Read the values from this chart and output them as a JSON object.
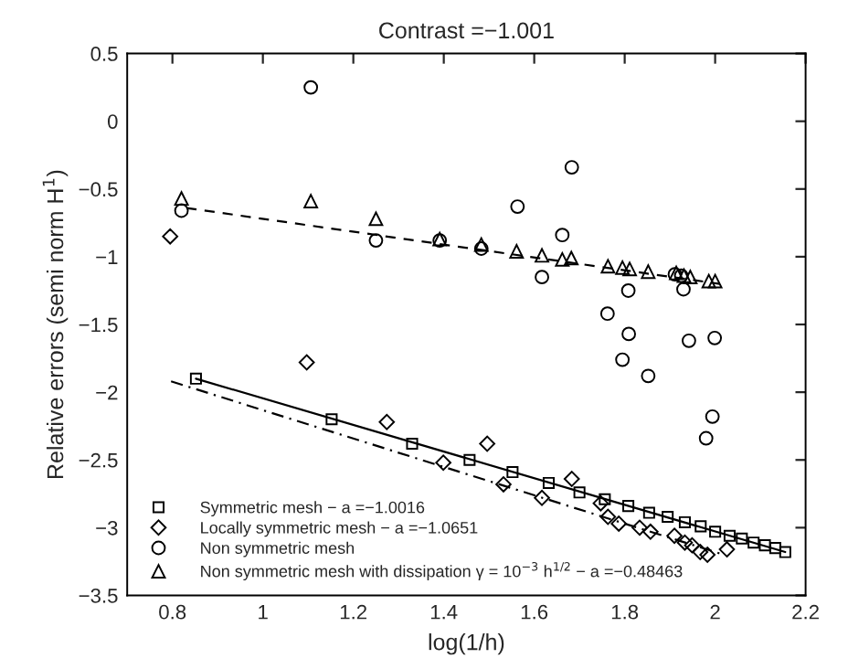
{
  "chart_data": {
    "type": "scatter",
    "title": "Contrast =−1.001",
    "xlabel": "log(1/h)",
    "ylabel": "Relative errors (semi norm H$^{1}$)",
    "xlim": [
      0.7,
      2.2
    ],
    "ylim": [
      -3.5,
      0.5
    ],
    "xticks": [
      0.8,
      1,
      1.2,
      1.4,
      1.6,
      1.8,
      2,
      2.2
    ],
    "yticks": [
      {
        "value": -3.5,
        "label": "−3.5"
      },
      {
        "value": -3,
        "label": "−3"
      },
      {
        "value": -2.5,
        "label": "−2.5"
      },
      {
        "value": -2,
        "label": "−2"
      },
      {
        "value": -1.5,
        "label": "−1.5"
      },
      {
        "value": -1,
        "label": "−1"
      },
      {
        "value": -0.5,
        "label": "−0.5"
      },
      0,
      0.5
    ],
    "grid": false,
    "legend": "bottom left",
    "series": [
      {
        "name": "Symmetric mesh − a =−1.0016",
        "marker": "square",
        "color": "#000000",
        "x": [
          0.852,
          1.152,
          1.33,
          1.457,
          1.552,
          1.632,
          1.7,
          1.756,
          1.808,
          1.854,
          1.895,
          1.933,
          1.968,
          2.0,
          2.032,
          2.059,
          2.085,
          2.11,
          2.133,
          2.155
        ],
        "values": [
          -1.9,
          -2.2,
          -2.38,
          -2.5,
          -2.59,
          -2.67,
          -2.74,
          -2.79,
          -2.84,
          -2.89,
          -2.92,
          -2.96,
          -2.99,
          -3.03,
          -3.06,
          -3.08,
          -3.11,
          -3.13,
          -3.15,
          -3.18
        ]
      },
      {
        "name": "Locally symmetric mesh − a =−1.0651",
        "marker": "diamond",
        "color": "#000000",
        "x": [
          0.795,
          1.097,
          1.274,
          1.399,
          1.496,
          1.532,
          1.617,
          1.683,
          1.747,
          1.763,
          1.787,
          1.833,
          1.857,
          1.91,
          1.933,
          1.949,
          1.967,
          1.983,
          2.026
        ],
        "values": [
          -0.85,
          -1.78,
          -2.22,
          -2.52,
          -2.38,
          -2.68,
          -2.78,
          -2.64,
          -2.82,
          -2.92,
          -2.97,
          -3.0,
          -3.03,
          -3.06,
          -3.11,
          -3.13,
          -3.18,
          -3.2,
          -3.16
        ]
      },
      {
        "name": "Non symmetric mesh",
        "marker": "circle",
        "color": "#000000",
        "x": [
          0.82,
          1.106,
          1.25,
          1.391,
          1.483,
          1.563,
          1.617,
          1.662,
          1.683,
          1.762,
          1.795,
          1.808,
          1.809,
          1.852,
          1.911,
          1.925,
          1.93,
          1.942,
          1.98,
          1.994,
          1.999
        ],
        "values": [
          -0.66,
          0.25,
          -0.88,
          -0.88,
          -0.94,
          -0.63,
          -1.15,
          -0.84,
          -0.34,
          -1.42,
          -1.76,
          -1.25,
          -1.57,
          -1.88,
          -1.13,
          -1.14,
          -1.24,
          -1.62,
          -2.34,
          -2.18,
          -1.6
        ]
      },
      {
        "name": "Non symmetric mesh with dissipation γ = 10$^{−3}$ h$^{1/2}$ − a =−0.48463",
        "marker": "triangle",
        "color": "#000000",
        "x": [
          0.82,
          1.106,
          1.25,
          1.391,
          1.483,
          1.561,
          1.617,
          1.662,
          1.682,
          1.763,
          1.795,
          1.811,
          1.852,
          1.914,
          1.931,
          1.945,
          1.986,
          2.0
        ],
        "values": [
          -0.57,
          -0.59,
          -0.72,
          -0.87,
          -0.91,
          -0.96,
          -0.99,
          -1.02,
          -1.01,
          -1.07,
          -1.08,
          -1.09,
          -1.11,
          -1.12,
          -1.14,
          -1.15,
          -1.18,
          -1.18
        ]
      },
      {
        "type": "line",
        "line_style": "solid",
        "color": "#000000",
        "x": [
          0.852,
          2.155
        ],
        "values": [
          -1.9,
          -3.18
        ]
      },
      {
        "type": "line",
        "line_style": "dashdot",
        "color": "#000000",
        "x": [
          0.797,
          2.01
        ],
        "values": [
          -1.92,
          -3.19
        ]
      },
      {
        "type": "line",
        "line_style": "dashed",
        "color": "#000000",
        "x": [
          0.831,
          2.01
        ],
        "values": [
          -0.64,
          -1.2
        ]
      }
    ]
  }
}
